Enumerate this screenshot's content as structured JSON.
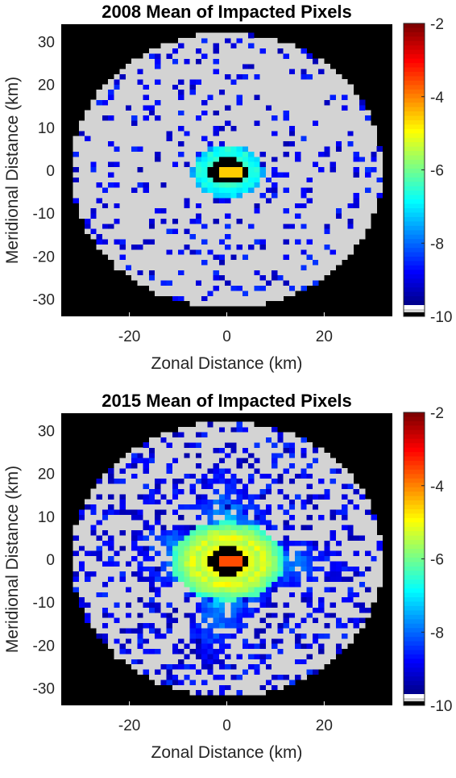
{
  "chart_data": [
    {
      "type": "heatmap",
      "title": "2008 Mean of Impacted Pixels",
      "xlabel": "Zonal Distance (km)",
      "ylabel": "Meridional Distance (km)",
      "xlim": [
        -34,
        34
      ],
      "ylim": [
        -34,
        34
      ],
      "x_ticks": [
        -20,
        0,
        20
      ],
      "y_ticks": [
        30,
        20,
        10,
        0,
        -10,
        -20,
        -30
      ],
      "disk_radius_km": 32,
      "colorbar": {
        "range": [
          -10,
          -2
        ],
        "ticks": [
          -2,
          -4,
          -6,
          -8,
          -10
        ],
        "colormap": "jet",
        "background": "#d3d3d3"
      },
      "pattern": {
        "core_center": [
          0.2,
          -0.2
        ],
        "core_radius_x": 5.8,
        "core_radius_y": 5.0,
        "hole_radius_x": 3.9,
        "hole_radius_y": 3.2,
        "inner_peak_value": -4.6,
        "halo_value_range": [
          -6.5,
          -8.0
        ],
        "halo_width": 1.6,
        "plume_radius": 0,
        "plume_value_range": [
          -7.0,
          -9.3
        ],
        "speckle_density": 0.16,
        "speckle_value_range": [
          -8.6,
          -9.6
        ]
      }
    },
    {
      "type": "heatmap",
      "title": "2015 Mean of Impacted Pixels",
      "xlabel": "Zonal Distance (km)",
      "ylabel": "Meridional Distance (km)",
      "xlim": [
        -34,
        34
      ],
      "ylim": [
        -34,
        34
      ],
      "x_ticks": [
        -20,
        0,
        20
      ],
      "y_ticks": [
        30,
        20,
        10,
        0,
        -10,
        -20,
        -30
      ],
      "disk_radius_km": 32,
      "colorbar": {
        "range": [
          -10,
          -2
        ],
        "ticks": [
          -2,
          -4,
          -6,
          -8,
          -10
        ],
        "colormap": "jet",
        "background": "#d3d3d3"
      },
      "pattern": {
        "core_center": [
          0.2,
          -0.4
        ],
        "core_radius_x": 6.5,
        "core_radius_y": 5.2,
        "hole_radius_x": 4.2,
        "hole_radius_y": 3.3,
        "inner_peak_value": -3.6,
        "halo_value_range": [
          -5.0,
          -6.6
        ],
        "halo_width": 5.0,
        "plume_radius": 22,
        "plume_value_range": [
          -6.5,
          -9.3
        ],
        "speckle_density": 0.3,
        "speckle_value_range": [
          -8.6,
          -9.7
        ]
      }
    }
  ]
}
